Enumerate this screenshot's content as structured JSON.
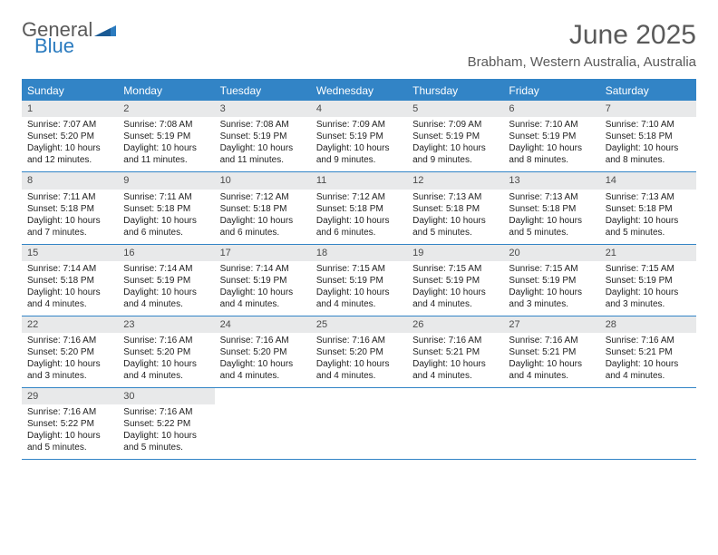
{
  "brand": {
    "word1": "General",
    "word2": "Blue"
  },
  "title": "June 2025",
  "subtitle": "Brabham, Western Australia, Australia",
  "colors": {
    "header_bg": "#3284c6",
    "header_text": "#ffffff",
    "daynum_bg": "#e8e9ea",
    "border": "#3284c6",
    "title_color": "#5a5a5a"
  },
  "day_names": [
    "Sunday",
    "Monday",
    "Tuesday",
    "Wednesday",
    "Thursday",
    "Friday",
    "Saturday"
  ],
  "weeks": [
    [
      {
        "n": "1",
        "sr": "7:07 AM",
        "ss": "5:20 PM",
        "dl": "10 hours and 12 minutes."
      },
      {
        "n": "2",
        "sr": "7:08 AM",
        "ss": "5:19 PM",
        "dl": "10 hours and 11 minutes."
      },
      {
        "n": "3",
        "sr": "7:08 AM",
        "ss": "5:19 PM",
        "dl": "10 hours and 11 minutes."
      },
      {
        "n": "4",
        "sr": "7:09 AM",
        "ss": "5:19 PM",
        "dl": "10 hours and 9 minutes."
      },
      {
        "n": "5",
        "sr": "7:09 AM",
        "ss": "5:19 PM",
        "dl": "10 hours and 9 minutes."
      },
      {
        "n": "6",
        "sr": "7:10 AM",
        "ss": "5:19 PM",
        "dl": "10 hours and 8 minutes."
      },
      {
        "n": "7",
        "sr": "7:10 AM",
        "ss": "5:18 PM",
        "dl": "10 hours and 8 minutes."
      }
    ],
    [
      {
        "n": "8",
        "sr": "7:11 AM",
        "ss": "5:18 PM",
        "dl": "10 hours and 7 minutes."
      },
      {
        "n": "9",
        "sr": "7:11 AM",
        "ss": "5:18 PM",
        "dl": "10 hours and 6 minutes."
      },
      {
        "n": "10",
        "sr": "7:12 AM",
        "ss": "5:18 PM",
        "dl": "10 hours and 6 minutes."
      },
      {
        "n": "11",
        "sr": "7:12 AM",
        "ss": "5:18 PM",
        "dl": "10 hours and 6 minutes."
      },
      {
        "n": "12",
        "sr": "7:13 AM",
        "ss": "5:18 PM",
        "dl": "10 hours and 5 minutes."
      },
      {
        "n": "13",
        "sr": "7:13 AM",
        "ss": "5:18 PM",
        "dl": "10 hours and 5 minutes."
      },
      {
        "n": "14",
        "sr": "7:13 AM",
        "ss": "5:18 PM",
        "dl": "10 hours and 5 minutes."
      }
    ],
    [
      {
        "n": "15",
        "sr": "7:14 AM",
        "ss": "5:18 PM",
        "dl": "10 hours and 4 minutes."
      },
      {
        "n": "16",
        "sr": "7:14 AM",
        "ss": "5:19 PM",
        "dl": "10 hours and 4 minutes."
      },
      {
        "n": "17",
        "sr": "7:14 AM",
        "ss": "5:19 PM",
        "dl": "10 hours and 4 minutes."
      },
      {
        "n": "18",
        "sr": "7:15 AM",
        "ss": "5:19 PM",
        "dl": "10 hours and 4 minutes."
      },
      {
        "n": "19",
        "sr": "7:15 AM",
        "ss": "5:19 PM",
        "dl": "10 hours and 4 minutes."
      },
      {
        "n": "20",
        "sr": "7:15 AM",
        "ss": "5:19 PM",
        "dl": "10 hours and 3 minutes."
      },
      {
        "n": "21",
        "sr": "7:15 AM",
        "ss": "5:19 PM",
        "dl": "10 hours and 3 minutes."
      }
    ],
    [
      {
        "n": "22",
        "sr": "7:16 AM",
        "ss": "5:20 PM",
        "dl": "10 hours and 3 minutes."
      },
      {
        "n": "23",
        "sr": "7:16 AM",
        "ss": "5:20 PM",
        "dl": "10 hours and 4 minutes."
      },
      {
        "n": "24",
        "sr": "7:16 AM",
        "ss": "5:20 PM",
        "dl": "10 hours and 4 minutes."
      },
      {
        "n": "25",
        "sr": "7:16 AM",
        "ss": "5:20 PM",
        "dl": "10 hours and 4 minutes."
      },
      {
        "n": "26",
        "sr": "7:16 AM",
        "ss": "5:21 PM",
        "dl": "10 hours and 4 minutes."
      },
      {
        "n": "27",
        "sr": "7:16 AM",
        "ss": "5:21 PM",
        "dl": "10 hours and 4 minutes."
      },
      {
        "n": "28",
        "sr": "7:16 AM",
        "ss": "5:21 PM",
        "dl": "10 hours and 4 minutes."
      }
    ],
    [
      {
        "n": "29",
        "sr": "7:16 AM",
        "ss": "5:22 PM",
        "dl": "10 hours and 5 minutes."
      },
      {
        "n": "30",
        "sr": "7:16 AM",
        "ss": "5:22 PM",
        "dl": "10 hours and 5 minutes."
      },
      null,
      null,
      null,
      null,
      null
    ]
  ],
  "labels": {
    "sunrise": "Sunrise: ",
    "sunset": "Sunset: ",
    "daylight": "Daylight: "
  }
}
